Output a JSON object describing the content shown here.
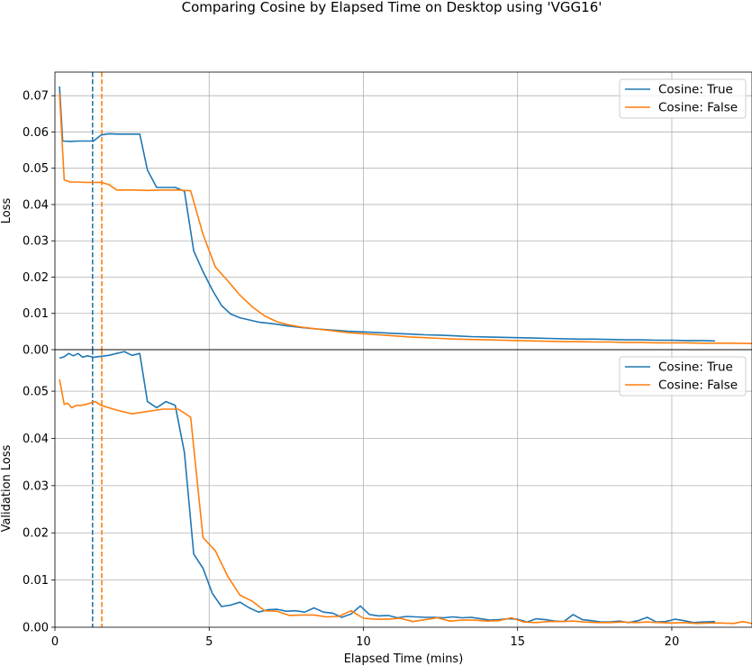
{
  "chart_data": {
    "type": "line",
    "title": "Comparing Cosine by Elapsed Time on Desktop using 'VGG16'",
    "xlabel": "Elapsed Time (mins)",
    "xlim": [
      0,
      22.6
    ],
    "xticks": [
      0,
      5,
      10,
      15,
      20
    ],
    "xtick_labels": [
      "0",
      "5",
      "10",
      "15",
      "20"
    ],
    "grid": true,
    "colors": {
      "Cosine: True": "#1f77b4",
      "Cosine: False": "#ff7f0e"
    },
    "vlines": [
      {
        "series": "Cosine: True",
        "x": 1.22
      },
      {
        "series": "Cosine: False",
        "x": 1.52
      }
    ],
    "panels": [
      {
        "ylabel": "Loss",
        "ylim": [
          0,
          0.0765
        ],
        "yticks": [
          0.0,
          0.01,
          0.02,
          0.03,
          0.04,
          0.05,
          0.06,
          0.07
        ],
        "ytick_labels": [
          "0.00",
          "0.01",
          "0.02",
          "0.03",
          "0.04",
          "0.05",
          "0.06",
          "0.07"
        ],
        "legend": "top-right",
        "series": [
          {
            "name": "Cosine: True",
            "x": [
              0.15,
              0.25,
              0.5,
              0.75,
              1.0,
              1.25,
              1.5,
              1.75,
              2.0,
              2.25,
              2.5,
              2.75,
              3.0,
              3.3,
              3.6,
              3.9,
              4.2,
              4.5,
              4.8,
              5.1,
              5.4,
              5.7,
              6.0,
              6.3,
              6.6,
              6.9,
              7.2,
              7.5,
              8.0,
              8.5,
              9.0,
              9.5,
              10.0,
              10.5,
              11.0,
              11.5,
              12.0,
              12.5,
              13.0,
              13.5,
              14.0,
              14.5,
              15.0,
              15.5,
              16.0,
              16.5,
              17.0,
              17.5,
              18.0,
              18.5,
              19.0,
              19.5,
              20.0,
              20.5,
              21.0,
              21.4
            ],
            "values": [
              0.0725,
              0.0575,
              0.0574,
              0.0575,
              0.0575,
              0.0575,
              0.0592,
              0.0595,
              0.0594,
              0.0594,
              0.0594,
              0.0594,
              0.0495,
              0.0447,
              0.0447,
              0.0447,
              0.0437,
              0.0272,
              0.0215,
              0.0165,
              0.0122,
              0.0098,
              0.0088,
              0.0082,
              0.0076,
              0.0073,
              0.007,
              0.0066,
              0.0061,
              0.0057,
              0.0054,
              0.0051,
              0.0049,
              0.0047,
              0.0045,
              0.0043,
              0.0041,
              0.004,
              0.0038,
              0.0036,
              0.0035,
              0.0034,
              0.0033,
              0.0032,
              0.0031,
              0.003,
              0.0029,
              0.0029,
              0.0028,
              0.0027,
              0.0027,
              0.0026,
              0.0026,
              0.0025,
              0.0025,
              0.0024
            ]
          },
          {
            "name": "Cosine: False",
            "x": [
              0.15,
              0.3,
              0.5,
              0.75,
              1.0,
              1.25,
              1.5,
              1.75,
              2.0,
              2.5,
              3.0,
              3.5,
              4.0,
              4.4,
              4.8,
              5.2,
              5.6,
              6.0,
              6.4,
              6.8,
              7.2,
              7.6,
              8.0,
              8.5,
              9.0,
              9.5,
              10.0,
              10.5,
              11.0,
              11.5,
              12.0,
              12.5,
              13.0,
              13.5,
              14.0,
              14.5,
              15.0,
              15.5,
              16.0,
              16.5,
              17.0,
              17.5,
              18.0,
              18.5,
              19.0,
              19.5,
              20.0,
              20.5,
              21.0,
              21.5,
              22.0,
              22.6
            ],
            "values": [
              0.0705,
              0.0468,
              0.0462,
              0.0462,
              0.0461,
              0.0461,
              0.0461,
              0.0455,
              0.044,
              0.044,
              0.0439,
              0.044,
              0.044,
              0.0438,
              0.0318,
              0.0228,
              0.019,
              0.015,
              0.0118,
              0.0093,
              0.0077,
              0.0068,
              0.0062,
              0.0057,
              0.0052,
              0.0047,
              0.0044,
              0.0041,
              0.0038,
              0.0035,
              0.0033,
              0.0031,
              0.0029,
              0.0028,
              0.0027,
              0.0026,
              0.0025,
              0.0024,
              0.0023,
              0.0022,
              0.0022,
              0.0021,
              0.0021,
              0.002,
              0.002,
              0.0019,
              0.0019,
              0.0019,
              0.0018,
              0.0018,
              0.0018,
              0.0017
            ]
          }
        ]
      },
      {
        "ylabel": "Validation Loss",
        "ylim": [
          0,
          0.0588
        ],
        "yticks": [
          0.0,
          0.01,
          0.02,
          0.03,
          0.04,
          0.05
        ],
        "ytick_labels": [
          "0.00",
          "0.01",
          "0.02",
          "0.03",
          "0.04",
          "0.05"
        ],
        "legend": "top-right",
        "series": [
          {
            "name": "Cosine: True",
            "x": [
              0.15,
              0.3,
              0.45,
              0.6,
              0.75,
              0.9,
              1.05,
              1.25,
              1.5,
              1.75,
              2.0,
              2.25,
              2.5,
              2.75,
              3.0,
              3.3,
              3.6,
              3.9,
              4.2,
              4.5,
              4.8,
              5.1,
              5.4,
              5.7,
              6.0,
              6.3,
              6.6,
              6.9,
              7.2,
              7.5,
              7.8,
              8.1,
              8.4,
              8.7,
              9.0,
              9.3,
              9.6,
              9.9,
              10.2,
              10.5,
              10.8,
              11.1,
              11.4,
              11.7,
              12.0,
              12.3,
              12.6,
              12.9,
              13.2,
              13.5,
              13.8,
              14.1,
              14.4,
              14.7,
              15.0,
              15.3,
              15.6,
              15.9,
              16.2,
              16.5,
              16.8,
              17.1,
              17.4,
              17.7,
              18.0,
              18.3,
              18.6,
              18.9,
              19.2,
              19.5,
              19.8,
              20.1,
              20.4,
              20.7,
              21.0,
              21.4
            ],
            "values": [
              0.057,
              0.0573,
              0.058,
              0.0575,
              0.058,
              0.0572,
              0.0575,
              0.0572,
              0.0574,
              0.0576,
              0.058,
              0.0584,
              0.0576,
              0.058,
              0.0478,
              0.0465,
              0.0478,
              0.047,
              0.037,
              0.0155,
              0.0125,
              0.0072,
              0.0044,
              0.0047,
              0.0053,
              0.0041,
              0.0032,
              0.0037,
              0.0038,
              0.0034,
              0.0035,
              0.0032,
              0.0041,
              0.0032,
              0.003,
              0.0021,
              0.0028,
              0.0045,
              0.0027,
              0.0024,
              0.0025,
              0.002,
              0.0023,
              0.0022,
              0.0021,
              0.0021,
              0.002,
              0.0022,
              0.002,
              0.0021,
              0.0018,
              0.0015,
              0.0016,
              0.0018,
              0.0017,
              0.0011,
              0.0018,
              0.0016,
              0.0013,
              0.0012,
              0.0027,
              0.0016,
              0.0014,
              0.0011,
              0.0011,
              0.0013,
              0.001,
              0.0014,
              0.0021,
              0.0011,
              0.0012,
              0.0017,
              0.0014,
              0.001,
              0.0011,
              0.0012
            ]
          },
          {
            "name": "Cosine: False",
            "x": [
              0.15,
              0.3,
              0.4,
              0.55,
              0.7,
              0.85,
              1.0,
              1.15,
              1.3,
              1.5,
              2.0,
              2.5,
              3.0,
              3.5,
              4.0,
              4.4,
              4.8,
              5.2,
              5.6,
              6.0,
              6.4,
              6.8,
              7.2,
              7.6,
              8.0,
              8.4,
              8.8,
              9.2,
              9.6,
              10.0,
              10.4,
              10.8,
              11.2,
              11.6,
              12.0,
              12.4,
              12.8,
              13.2,
              13.6,
              14.0,
              14.4,
              14.8,
              15.2,
              15.6,
              16.0,
              16.4,
              16.8,
              17.2,
              17.6,
              18.0,
              18.4,
              18.8,
              19.2,
              19.6,
              20.0,
              20.4,
              20.8,
              21.2,
              21.6,
              22.0,
              22.3,
              22.6
            ],
            "values": [
              0.0525,
              0.0472,
              0.0475,
              0.0465,
              0.047,
              0.047,
              0.0472,
              0.0475,
              0.0478,
              0.047,
              0.046,
              0.0452,
              0.0457,
              0.0462,
              0.0462,
              0.0445,
              0.019,
              0.0162,
              0.0108,
              0.0068,
              0.0055,
              0.0035,
              0.0034,
              0.0025,
              0.0026,
              0.0026,
              0.0022,
              0.0023,
              0.0035,
              0.0019,
              0.0017,
              0.0017,
              0.0019,
              0.0012,
              0.0016,
              0.002,
              0.0013,
              0.0015,
              0.0015,
              0.0013,
              0.0014,
              0.002,
              0.0011,
              0.001,
              0.0012,
              0.0012,
              0.0013,
              0.0011,
              0.001,
              0.001,
              0.0011,
              0.001,
              0.0011,
              0.001,
              0.0009,
              0.001,
              0.0008,
              0.0009,
              0.0009,
              0.0008,
              0.0012,
              0.0008
            ]
          }
        ]
      }
    ]
  }
}
